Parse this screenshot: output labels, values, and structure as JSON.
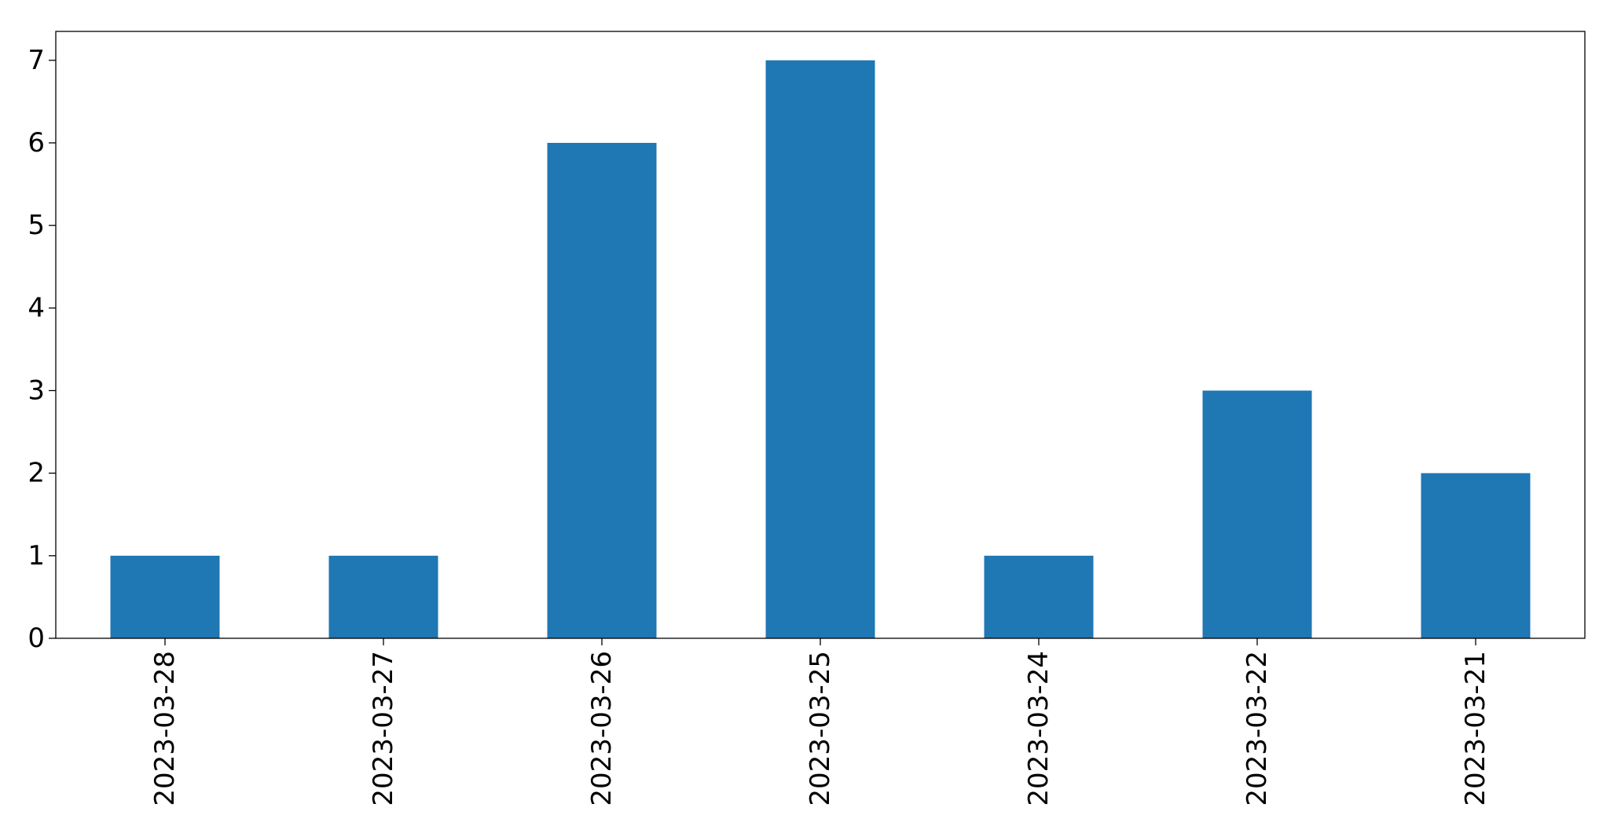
{
  "chart_data": {
    "type": "bar",
    "title": "",
    "xlabel": "",
    "ylabel": "",
    "categories": [
      "2023-03-28",
      "2023-03-27",
      "2023-03-26",
      "2023-03-25",
      "2023-03-24",
      "2023-03-22",
      "2023-03-21"
    ],
    "values": [
      1,
      1,
      6,
      7,
      1,
      3,
      2
    ],
    "ylim": [
      0,
      7.35
    ],
    "yticks": [
      0,
      1,
      2,
      3,
      4,
      5,
      6,
      7
    ],
    "bar_color": "#1f77b4",
    "grid": false,
    "legend": "none"
  }
}
